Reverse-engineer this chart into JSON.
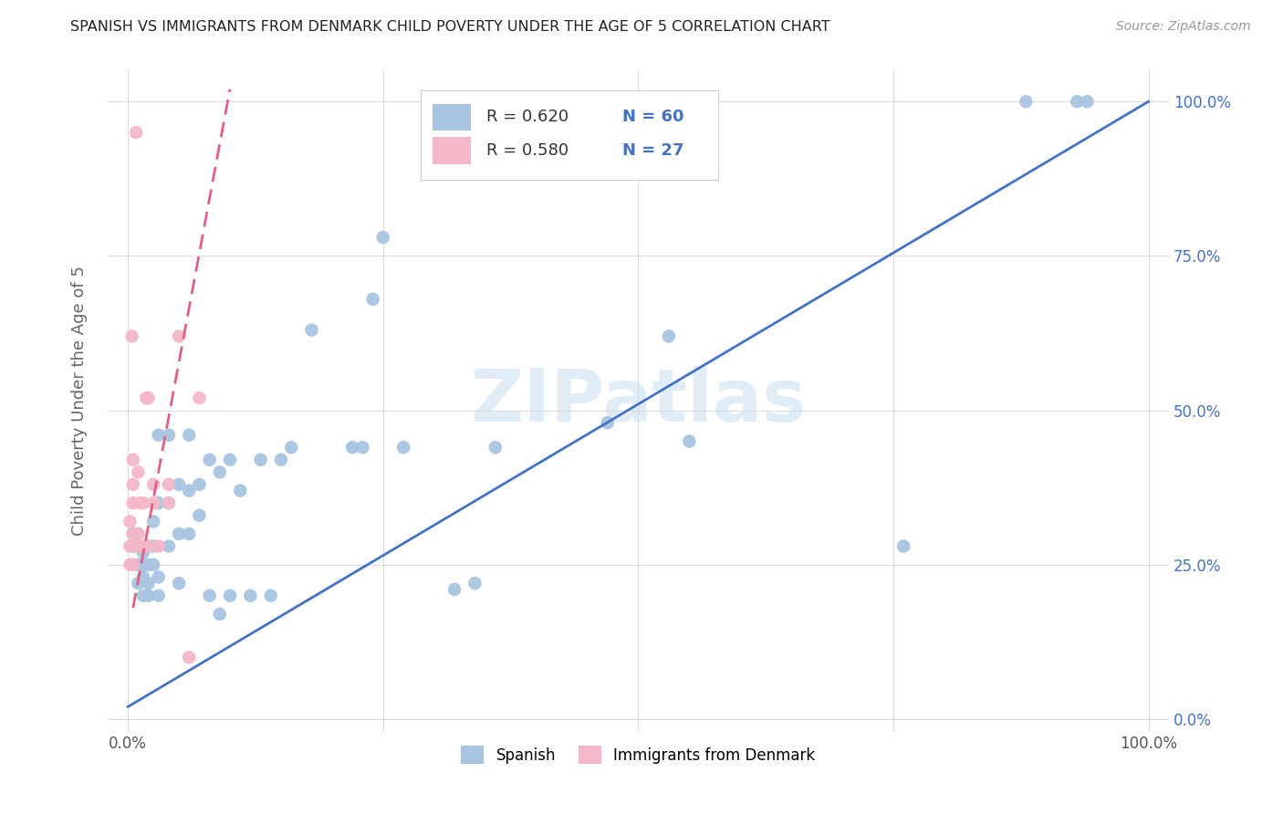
{
  "title": "SPANISH VS IMMIGRANTS FROM DENMARK CHILD POVERTY UNDER THE AGE OF 5 CORRELATION CHART",
  "source": "Source: ZipAtlas.com",
  "ylabel": "Child Poverty Under the Age of 5",
  "xlim": [
    -0.02,
    1.02
  ],
  "ylim": [
    -0.02,
    1.05
  ],
  "xtick_positions": [
    0,
    0.25,
    0.5,
    0.75,
    1.0
  ],
  "xticklabels": [
    "0.0%",
    "",
    "",
    "",
    "100.0%"
  ],
  "ytick_positions": [
    0,
    0.25,
    0.5,
    0.75,
    1.0
  ],
  "ytick_labels_right": [
    "0.0%",
    "25.0%",
    "50.0%",
    "75.0%",
    "100.0%"
  ],
  "legend_r_blue": "R = 0.620",
  "legend_n_blue": "N = 60",
  "legend_r_pink": "R = 0.580",
  "legend_n_pink": "N = 27",
  "legend_label_blue": "Spanish",
  "legend_label_pink": "Immigrants from Denmark",
  "blue_color": "#a8c4e0",
  "pink_color": "#f4b8c8",
  "line_blue_color": "#4472c4",
  "line_pink_color": "#e06080",
  "watermark_text": "ZIPatlas",
  "watermark_color": "#c8dff0",
  "blue_scatter_x": [
    0.005,
    0.005,
    0.01,
    0.01,
    0.01,
    0.01,
    0.015,
    0.015,
    0.015,
    0.015,
    0.02,
    0.02,
    0.02,
    0.02,
    0.025,
    0.025,
    0.025,
    0.03,
    0.03,
    0.03,
    0.03,
    0.04,
    0.04,
    0.04,
    0.05,
    0.05,
    0.05,
    0.06,
    0.06,
    0.06,
    0.07,
    0.07,
    0.08,
    0.08,
    0.09,
    0.09,
    0.1,
    0.1,
    0.11,
    0.12,
    0.13,
    0.14,
    0.15,
    0.16,
    0.18,
    0.22,
    0.23,
    0.24,
    0.25,
    0.27,
    0.32,
    0.34,
    0.36,
    0.47,
    0.53,
    0.55,
    0.76,
    0.88,
    0.93,
    0.94
  ],
  "blue_scatter_y": [
    0.28,
    0.3,
    0.22,
    0.25,
    0.28,
    0.3,
    0.2,
    0.23,
    0.25,
    0.27,
    0.2,
    0.22,
    0.25,
    0.28,
    0.25,
    0.28,
    0.32,
    0.2,
    0.23,
    0.35,
    0.46,
    0.28,
    0.35,
    0.46,
    0.22,
    0.3,
    0.38,
    0.3,
    0.37,
    0.46,
    0.33,
    0.38,
    0.2,
    0.42,
    0.17,
    0.4,
    0.2,
    0.42,
    0.37,
    0.2,
    0.42,
    0.2,
    0.42,
    0.44,
    0.63,
    0.44,
    0.44,
    0.68,
    0.78,
    0.44,
    0.21,
    0.22,
    0.44,
    0.48,
    0.62,
    0.45,
    0.28,
    1.0,
    1.0,
    1.0
  ],
  "pink_scatter_x": [
    0.002,
    0.002,
    0.002,
    0.004,
    0.005,
    0.005,
    0.005,
    0.005,
    0.005,
    0.008,
    0.01,
    0.01,
    0.01,
    0.012,
    0.015,
    0.015,
    0.018,
    0.02,
    0.02,
    0.025,
    0.025,
    0.03,
    0.04,
    0.04,
    0.05,
    0.06,
    0.07
  ],
  "pink_scatter_y": [
    0.25,
    0.28,
    0.32,
    0.62,
    0.25,
    0.3,
    0.35,
    0.38,
    0.42,
    0.95,
    0.28,
    0.3,
    0.4,
    0.35,
    0.28,
    0.35,
    0.52,
    0.28,
    0.52,
    0.35,
    0.38,
    0.28,
    0.35,
    0.38,
    0.62,
    0.1,
    0.52
  ],
  "blue_line_x": [
    0.0,
    1.0
  ],
  "blue_line_y": [
    0.02,
    1.0
  ],
  "pink_line_x": [
    0.005,
    0.1
  ],
  "pink_line_y": [
    0.18,
    1.02
  ]
}
